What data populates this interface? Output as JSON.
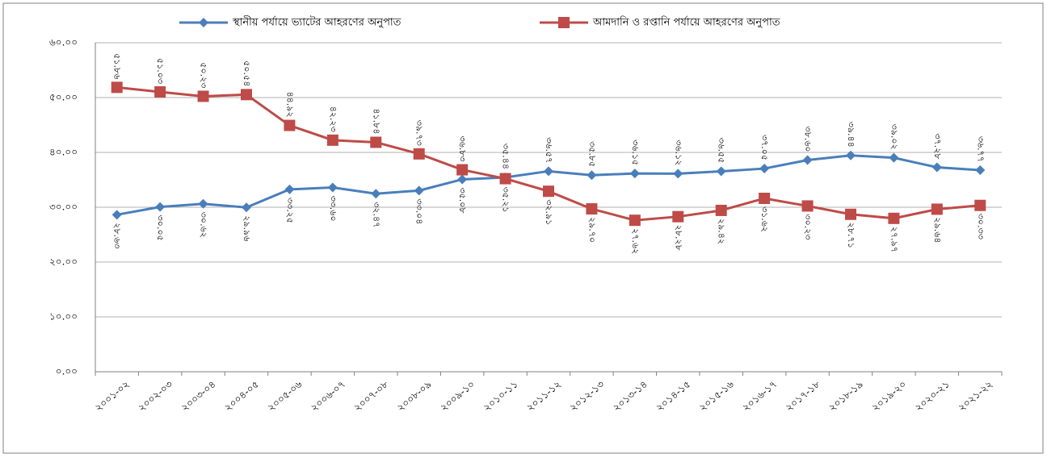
{
  "chart_data": {
    "type": "line",
    "categories": [
      "২০০১-০২",
      "২০০২-০৩",
      "২০০৩-০৪",
      "২০০৪-০৫",
      "২০০৫-০৬",
      "২০০৬-০৭",
      "২০০৭-০৮",
      "২০০৮-০৯",
      "২০০৯-১০",
      "২০১০-১১",
      "২০১১-১২",
      "২০১২-১৩",
      "২০১৩-১৪",
      "২০১৪-১৫",
      "২০১৫-১৬",
      "২০১৬-১৭",
      "২০১৭-১৮",
      "২০১৮-১৯",
      "২০১৯-২০",
      "২০২০-২১",
      "২০২১-২২"
    ],
    "series": [
      {
        "name": "স্থানীয় পর্যায়ে ভ্যাটের আহরণের অনুপাত",
        "color": "#4a7ebb",
        "marker": "diamond",
        "values": [
          28.63,
          30.05,
          30.62,
          29.96,
          33.25,
          33.6,
          32.47,
          33.04,
          35.08,
          35.44,
          36.57,
          35.85,
          36.15,
          36.12,
          36.55,
          37.05,
          38.6,
          39.44,
          39.02,
          37.28,
          36.77
        ],
        "value_labels": [
          "২৮.৬৩",
          "৩০.০৫",
          "৩০.৬২",
          "২৯.৯৬",
          "৩৩.২৫",
          "৩৩.৬০",
          "৩২.৪৭",
          "৩৩.০৪",
          "৩৫.০৮",
          "৩৫.৪৪",
          "৩৬.৫৭",
          "৩৫.৮৫",
          "৩৬.১৫",
          "৩৬.১২",
          "৩৬.৫৫",
          "৩৭.০৫",
          "৩৮.৬০",
          "৩৯.৪৪",
          "৩৯.০২",
          "৩৭.২৮",
          "৩৬.৭৭"
        ]
      },
      {
        "name": "আমদানি ও রপ্তানি পর্যায়ে আহরণের অনুপাত",
        "color": "#be4b48",
        "marker": "square",
        "values": [
          51.86,
          51.03,
          50.23,
          50.54,
          44.92,
          42.23,
          41.84,
          39.73,
          36.83,
          35.21,
          32.91,
          29.7,
          27.62,
          28.28,
          29.42,
          31.62,
          30.23,
          28.71,
          27.97,
          29.64,
          30.33
        ],
        "value_labels": [
          "৫১.৮৬",
          "৫১.০৩",
          "৫০.২৩",
          "৫০.৫৪",
          "৪৪.৯২",
          "৪২.২৩",
          "৪১.৮৪",
          "৩৯.৭৩",
          "৩৬.৮৩",
          "৩৫.২১",
          "৩২.৯১",
          "২৯.৭০",
          "২৭.৬২",
          "২৮.২৮",
          "২৯.৪২",
          "৩১.৬২",
          "৩০.২৩",
          "২৮.৭১",
          "২৭.৯৭",
          "২৯.৬৪",
          "৩০.৩৩"
        ]
      }
    ],
    "ylim": [
      0,
      60
    ],
    "yticks": [
      {
        "value": 0,
        "label": "০.০০"
      },
      {
        "value": 10,
        "label": "১০.০০"
      },
      {
        "value": 20,
        "label": "২০.০০"
      },
      {
        "value": 30,
        "label": "৩০.০০"
      },
      {
        "value": 40,
        "label": "৪০.০০"
      },
      {
        "value": 50,
        "label": "৫০.০০"
      },
      {
        "value": 60,
        "label": "৬০.০০"
      }
    ],
    "grid": true,
    "legend": "top"
  }
}
